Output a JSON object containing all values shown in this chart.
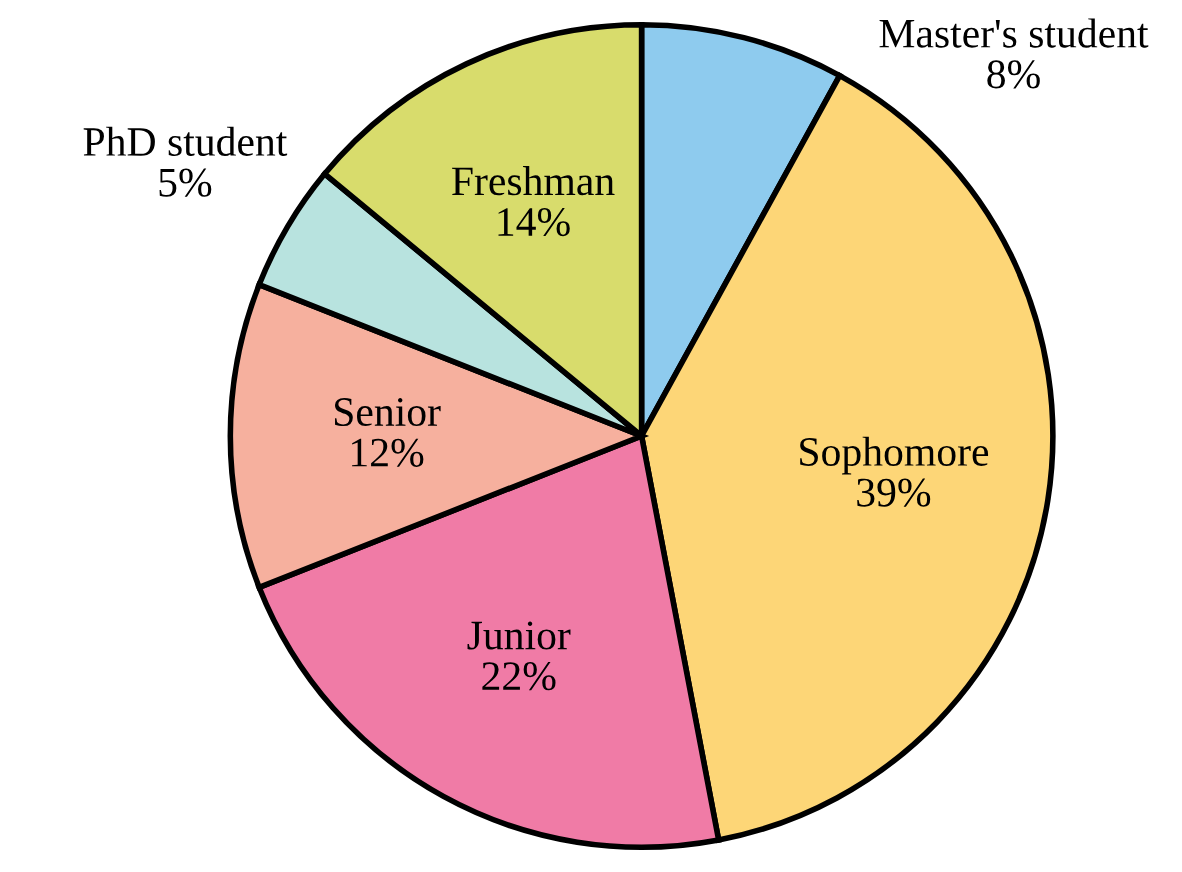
{
  "chart_data": {
    "type": "pie",
    "categories": [
      "Master's student",
      "Sophomore",
      "Junior",
      "Senior",
      "PhD student",
      "Freshman"
    ],
    "values": [
      8,
      39,
      22,
      12,
      5,
      14
    ],
    "colors": [
      "#8ecbee",
      "#fdd677",
      "#f07ba6",
      "#f6b09e",
      "#b8e3df",
      "#d8dc6c"
    ],
    "value_labels": [
      "8%",
      "39%",
      "22%",
      "12%",
      "5%",
      "14%"
    ],
    "legend": false
  }
}
